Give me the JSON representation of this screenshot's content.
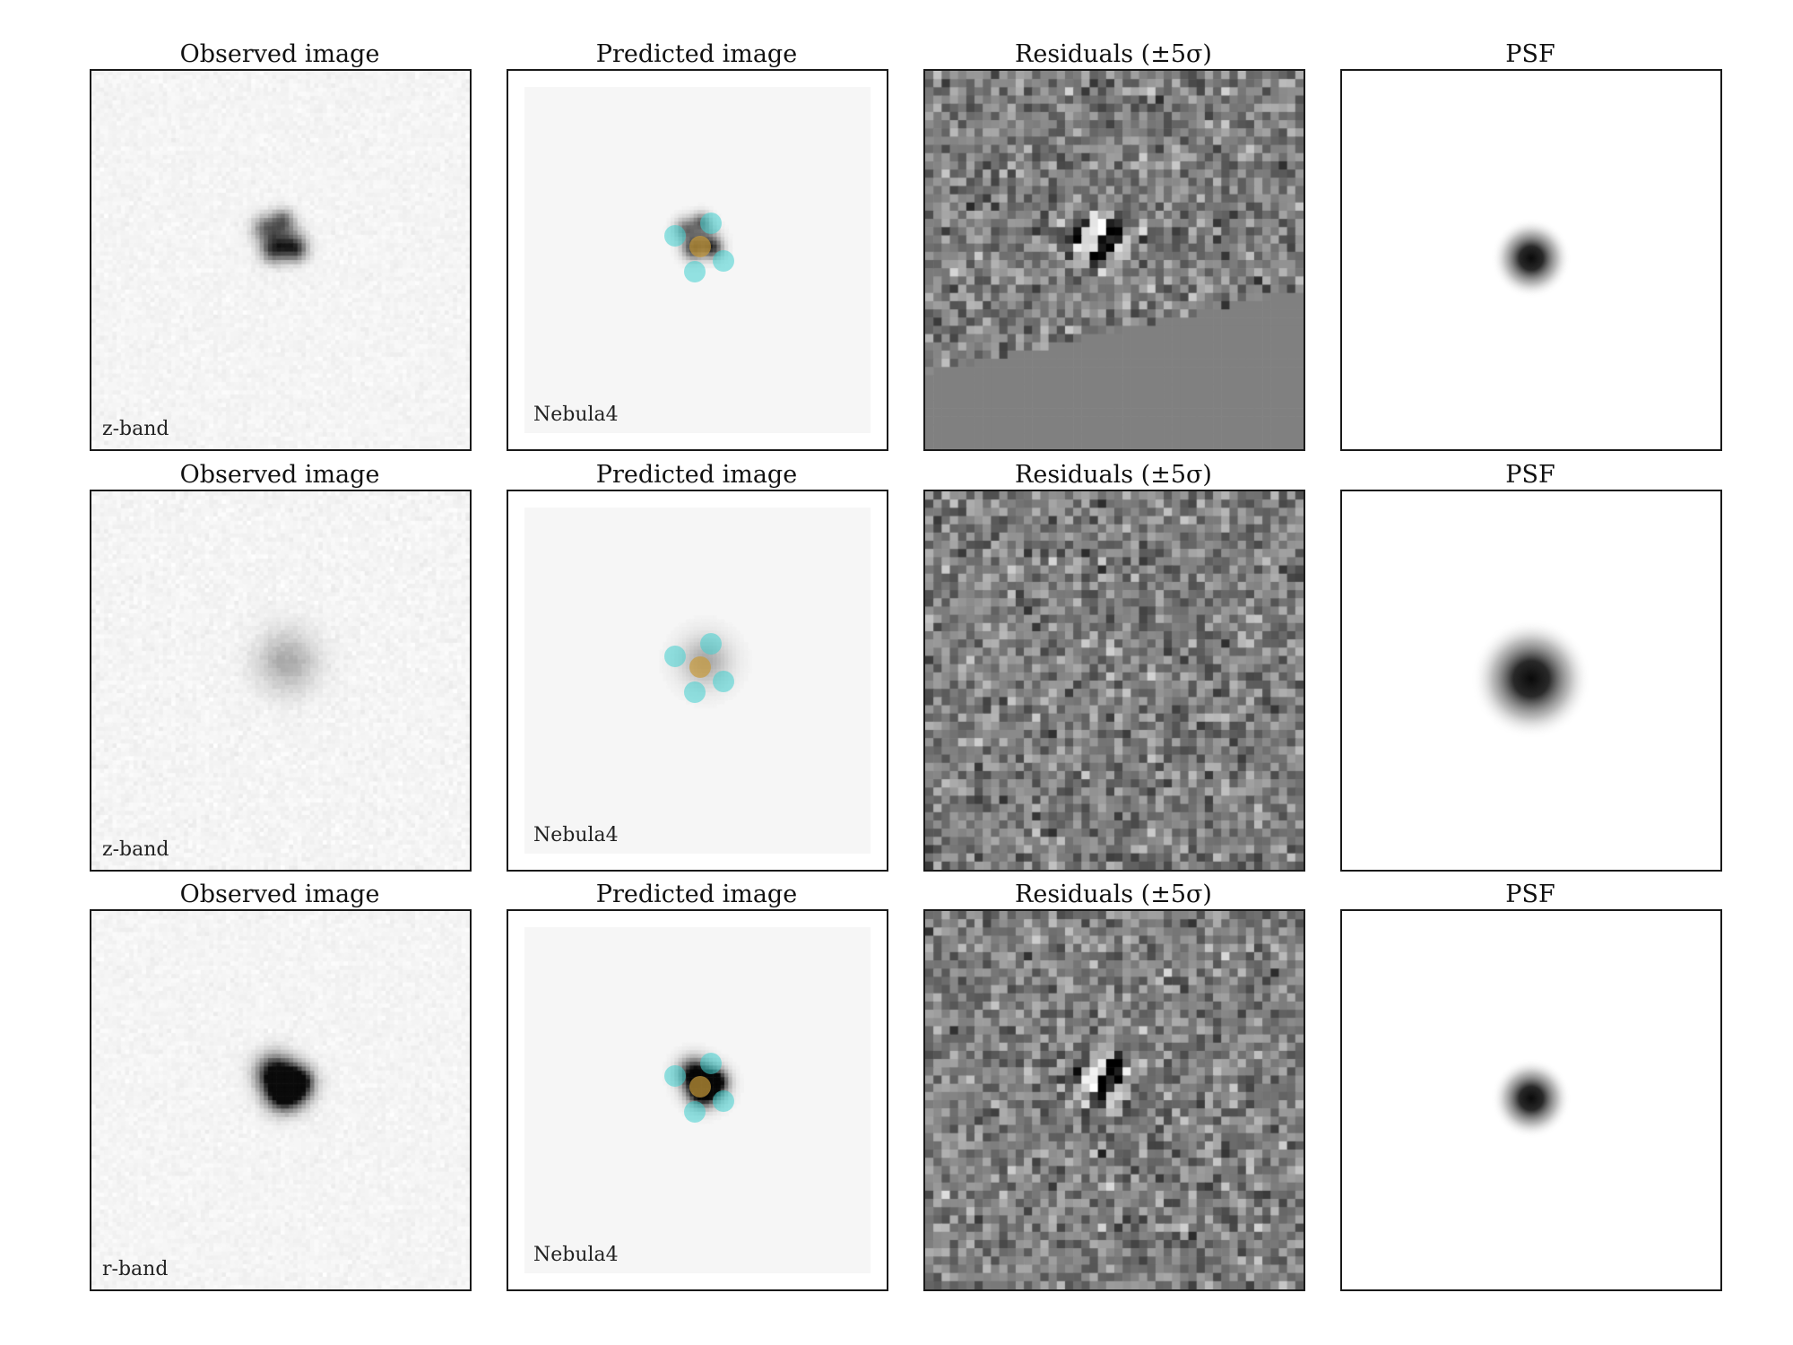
{
  "column_titles": {
    "observed": "Observed image",
    "predicted": "Predicted image",
    "residuals": "Residuals (±5σ)",
    "psf": "PSF"
  },
  "rows": [
    {
      "band": "z-band",
      "model": "Nebula4"
    },
    {
      "band": "z-band",
      "model": "Nebula4"
    },
    {
      "band": "r-band",
      "model": "Nebula4"
    }
  ],
  "colors": {
    "component_marker": "#40d0d0",
    "center_marker": "#c89a3a",
    "panel_border": "#1a1a1a"
  }
}
